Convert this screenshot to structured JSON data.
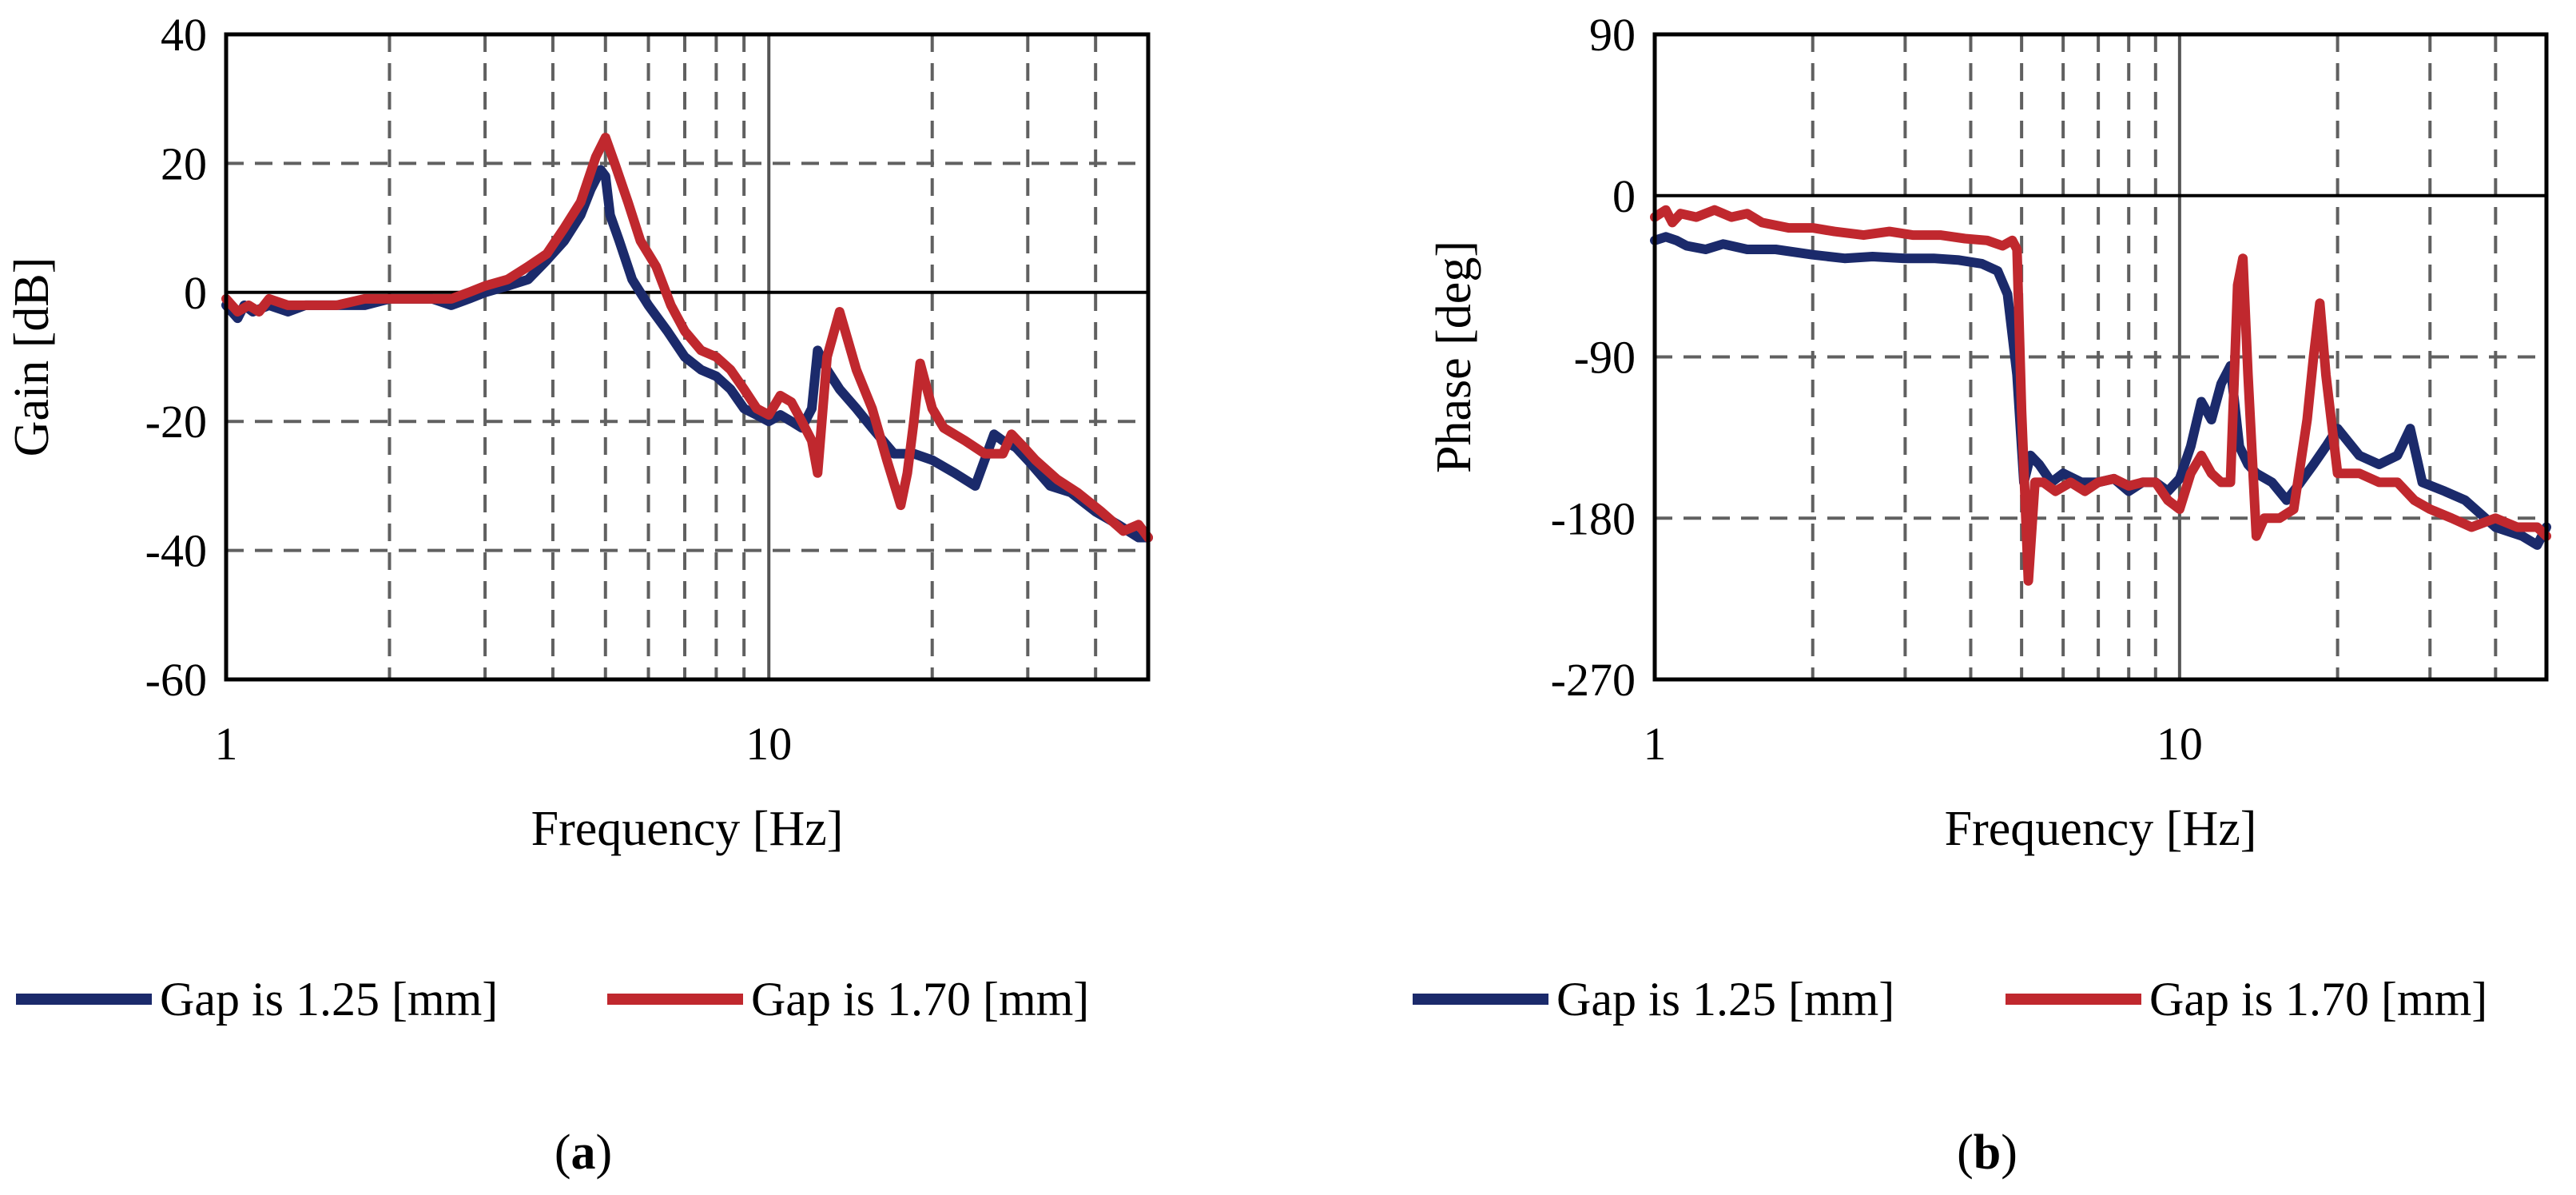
{
  "chart_data": [
    {
      "type": "line",
      "panel_label_open": "(",
      "panel_label_letter": "a",
      "panel_label_close": ")",
      "xlabel": "Frequency [Hz]",
      "ylabel": "Gain [dB]",
      "xscale": "log",
      "xlim": [
        1,
        50
      ],
      "ylim": [
        -60,
        40
      ],
      "xticks": [
        1,
        10
      ],
      "xtick_labels": [
        "1",
        "10"
      ],
      "yticks": [
        40,
        20,
        0,
        -20,
        -40,
        -60
      ],
      "ytick_labels": [
        "40",
        "20",
        "0",
        "-20",
        "-40",
        "-60"
      ],
      "reference_line": 0,
      "grid": true,
      "legend_position": "bottom",
      "series": [
        {
          "name": "Gap is 1.25 [mm]",
          "color": "#1b2a6b",
          "x": [
            1.0,
            1.05,
            1.08,
            1.12,
            1.2,
            1.3,
            1.4,
            1.6,
            1.8,
            2.0,
            2.2,
            2.4,
            2.6,
            2.8,
            3.0,
            3.3,
            3.6,
            3.9,
            4.2,
            4.5,
            4.7,
            4.9,
            5.0,
            5.1,
            5.3,
            5.6,
            6.0,
            6.5,
            7.0,
            7.5,
            8.0,
            8.5,
            9.0,
            9.5,
            10.0,
            10.5,
            11.0,
            11.5,
            12.0,
            12.3,
            12.8,
            13.5,
            14.5,
            15.5,
            17.0,
            18.5,
            20.0,
            22.0,
            24.0,
            26.0,
            27.0,
            28.5,
            30.0,
            33.0,
            36.0,
            40.0,
            44.0,
            48.0,
            50.0
          ],
          "values": [
            -2,
            -4,
            -2,
            -3,
            -2,
            -3,
            -2,
            -2,
            -2,
            -1,
            -1,
            -1,
            -2,
            -1,
            0,
            1,
            2,
            5,
            8,
            12,
            16,
            19,
            18,
            12,
            8,
            2,
            -2,
            -6,
            -10,
            -12,
            -13,
            -15,
            -18,
            -19,
            -20,
            -19,
            -20,
            -21,
            -18,
            -9,
            -12,
            -15,
            -18,
            -21,
            -25,
            -25,
            -26,
            -28,
            -30,
            -22,
            -23,
            -24,
            -26,
            -30,
            -31,
            -34,
            -36,
            -38,
            -38
          ]
        },
        {
          "name": "Gap is 1.70 [mm]",
          "color": "#c0282e",
          "x": [
            1.0,
            1.05,
            1.1,
            1.15,
            1.2,
            1.3,
            1.4,
            1.5,
            1.6,
            1.8,
            2.0,
            2.2,
            2.4,
            2.6,
            2.8,
            3.0,
            3.3,
            3.6,
            3.9,
            4.2,
            4.5,
            4.8,
            5.0,
            5.2,
            5.5,
            5.8,
            6.2,
            6.6,
            7.0,
            7.5,
            8.0,
            8.5,
            9.0,
            9.5,
            10.0,
            10.5,
            11.0,
            11.5,
            12.0,
            12.3,
            12.8,
            13.5,
            14.5,
            15.5,
            16.5,
            17.5,
            18.0,
            18.5,
            19.0,
            20.0,
            21.0,
            23.0,
            25.0,
            27.0,
            28.0,
            29.5,
            31.0,
            34.0,
            37.0,
            41.0,
            45.0,
            48.0,
            50.0
          ],
          "values": [
            -1,
            -3,
            -2,
            -3,
            -1,
            -2,
            -2,
            -2,
            -2,
            -1,
            -1,
            -1,
            -1,
            -1,
            0,
            1,
            2,
            4,
            6,
            10,
            14,
            21,
            24,
            20,
            14,
            8,
            4,
            -2,
            -6,
            -9,
            -10,
            -12,
            -15,
            -18,
            -19,
            -16,
            -17,
            -20,
            -23,
            -28,
            -10,
            -3,
            -12,
            -18,
            -26,
            -33,
            -28,
            -20,
            -11,
            -18,
            -21,
            -23,
            -25,
            -25,
            -22,
            -24,
            -26,
            -29,
            -31,
            -34,
            -37,
            -36,
            -38
          ]
        }
      ]
    },
    {
      "type": "line",
      "panel_label_open": "(",
      "panel_label_letter": "b",
      "panel_label_close": ")",
      "xlabel": "Frequency [Hz]",
      "ylabel": "Phase [deg]",
      "xscale": "log",
      "xlim": [
        1,
        50
      ],
      "ylim": [
        -270,
        90
      ],
      "xticks": [
        1,
        10
      ],
      "xtick_labels": [
        "1",
        "10"
      ],
      "yticks": [
        90,
        0,
        -90,
        -180,
        -270
      ],
      "ytick_labels": [
        "90",
        "0",
        "-90",
        "-180",
        "-270"
      ],
      "reference_line": 0,
      "grid": true,
      "legend_position": "bottom",
      "series": [
        {
          "name": "Gap is 1.25 [mm]",
          "color": "#1b2a6b",
          "x": [
            1.0,
            1.05,
            1.1,
            1.15,
            1.25,
            1.35,
            1.5,
            1.7,
            2.0,
            2.3,
            2.6,
            3.0,
            3.4,
            3.8,
            4.2,
            4.5,
            4.7,
            4.9,
            5.05,
            5.2,
            5.4,
            5.7,
            6.0,
            6.5,
            7.0,
            7.5,
            8.0,
            8.5,
            9.0,
            9.5,
            10.0,
            10.5,
            11.0,
            11.5,
            12.0,
            12.5,
            13.0,
            13.5,
            14.0,
            15.0,
            16.0,
            17.0,
            18.0,
            19.0,
            20.0,
            22.0,
            24.0,
            26.0,
            27.5,
            29.0,
            32.0,
            35.0,
            40.0,
            45.0,
            48.0,
            50.0
          ],
          "values": [
            -25,
            -23,
            -25,
            -28,
            -30,
            -27,
            -30,
            -30,
            -33,
            -35,
            -34,
            -35,
            -35,
            -36,
            -38,
            -42,
            -55,
            -100,
            -160,
            -145,
            -150,
            -160,
            -155,
            -160,
            -160,
            -158,
            -165,
            -160,
            -160,
            -165,
            -158,
            -140,
            -115,
            -125,
            -105,
            -95,
            -140,
            -150,
            -155,
            -160,
            -170,
            -160,
            -150,
            -140,
            -130,
            -145,
            -150,
            -145,
            -130,
            -160,
            -165,
            -170,
            -185,
            -190,
            -195,
            -185
          ]
        },
        {
          "name": "Gap is 1.70 [mm]",
          "color": "#c0282e",
          "x": [
            1.0,
            1.05,
            1.08,
            1.12,
            1.2,
            1.3,
            1.4,
            1.5,
            1.6,
            1.8,
            2.0,
            2.2,
            2.5,
            2.8,
            3.1,
            3.5,
            3.9,
            4.3,
            4.6,
            4.8,
            4.9,
            5.0,
            5.15,
            5.3,
            5.5,
            5.8,
            6.2,
            6.6,
            7.0,
            7.5,
            8.0,
            8.5,
            9.0,
            9.5,
            10.0,
            10.5,
            11.0,
            11.5,
            12.0,
            12.5,
            12.9,
            13.2,
            13.5,
            14.0,
            14.5,
            15.5,
            16.5,
            17.5,
            18.0,
            18.5,
            19.0,
            20.0,
            22.0,
            24.0,
            26.0,
            28.0,
            30.0,
            33.0,
            36.0,
            40.0,
            44.0,
            48.0,
            50.0
          ],
          "values": [
            -12,
            -8,
            -15,
            -10,
            -12,
            -8,
            -12,
            -10,
            -15,
            -18,
            -18,
            -20,
            -22,
            -20,
            -22,
            -22,
            -24,
            -25,
            -28,
            -25,
            -30,
            -120,
            -215,
            -160,
            -160,
            -165,
            -160,
            -165,
            -160,
            -158,
            -162,
            -160,
            -160,
            -170,
            -175,
            -155,
            -145,
            -155,
            -160,
            -160,
            -50,
            -35,
            -100,
            -190,
            -180,
            -180,
            -175,
            -125,
            -90,
            -60,
            -100,
            -155,
            -155,
            -160,
            -160,
            -170,
            -175,
            -180,
            -185,
            -180,
            -185,
            -185,
            -190
          ]
        }
      ]
    }
  ]
}
